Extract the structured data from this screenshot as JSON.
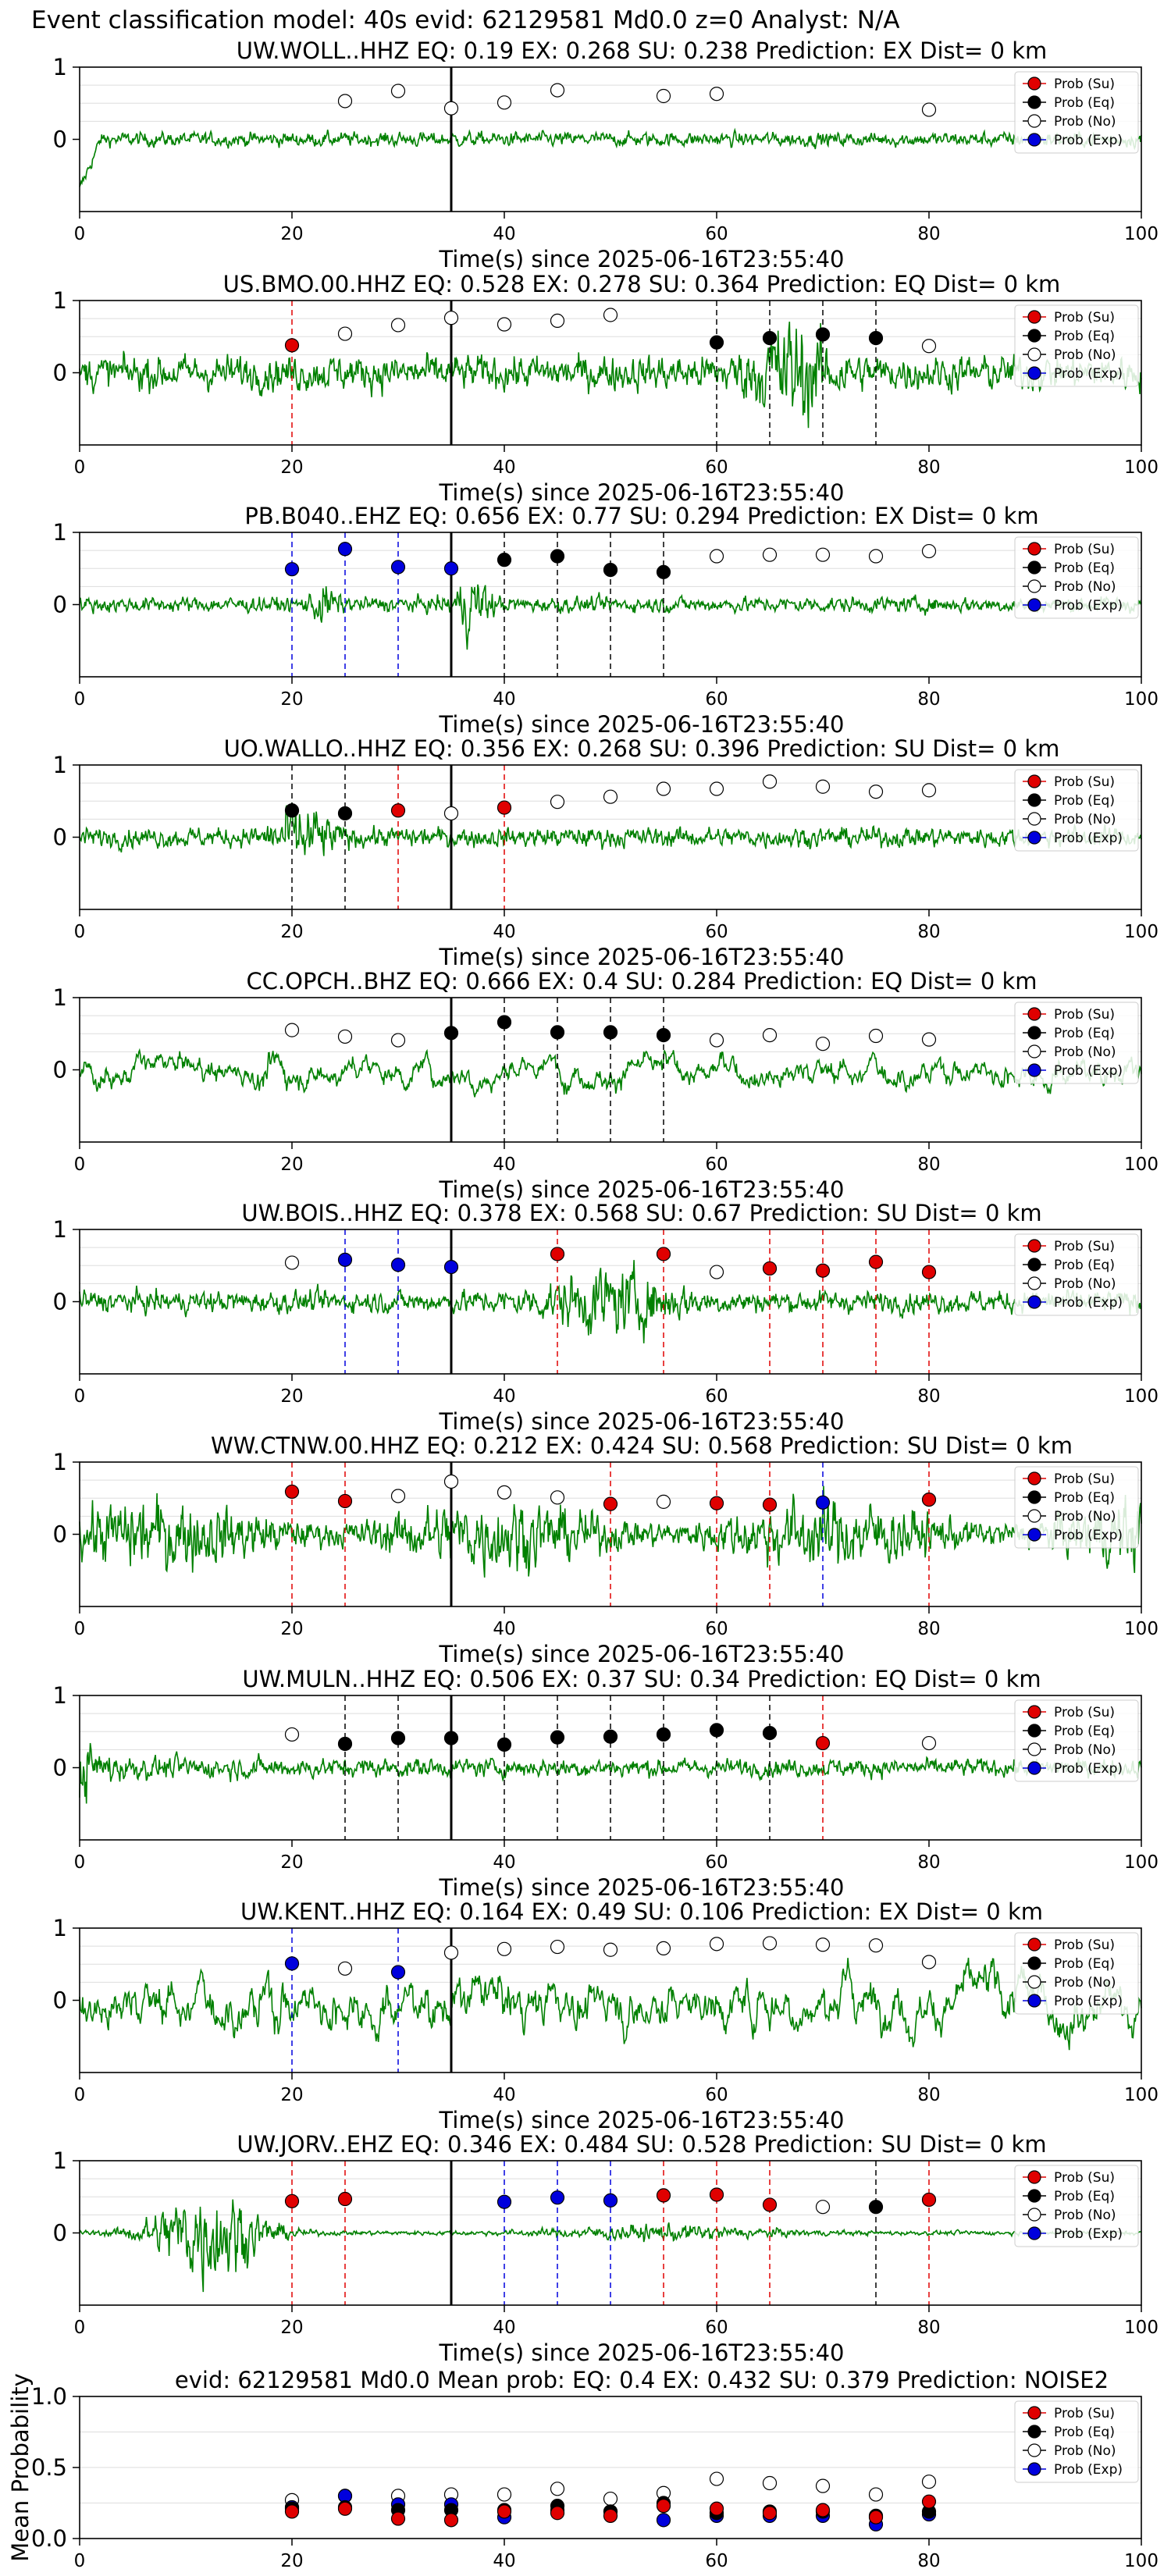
{
  "figure_title": "Event classification model: 40s evid: 62129581 Md0.0 z=0 Analyst: N/A",
  "x_axis_label": "Time(s) since 2025-06-16T23:55:40",
  "legend_labels": [
    "Prob (Su)",
    "Prob (Eq)",
    "Prob (No)",
    "Prob (Exp)"
  ],
  "colors": {
    "su": "#e00000",
    "eq": "#000000",
    "no": "#ffffff",
    "exp": "#0000dd",
    "waveform": "#008000",
    "grid": "#dddddd"
  },
  "chart_data": [
    {
      "type": "line",
      "station": "UW.WOLL..HHZ",
      "title": "UW.WOLL..HHZ   EQ: 0.19  EX: 0.268  SU: 0.238   Prediction: EX    Dist= 0 km",
      "xlim": [
        0,
        100
      ],
      "ylim": [
        -1,
        1
      ],
      "x_ticks": [
        0,
        20,
        40,
        60,
        80,
        100
      ],
      "y_ticks": [
        0,
        1
      ],
      "origin_line_x": 35,
      "waveform": {
        "amplitude": 0.13,
        "style": "quiet"
      },
      "markers": {
        "x": [
          25,
          30,
          35,
          40,
          45,
          55,
          60,
          80
        ],
        "classes": [
          "no",
          "no",
          "no",
          "no",
          "no",
          "no",
          "no",
          "no"
        ],
        "y": [
          0.53,
          0.67,
          0.43,
          0.51,
          0.68,
          0.6,
          0.63,
          0.41
        ]
      },
      "picks": []
    },
    {
      "type": "line",
      "station": "US.BMO.00.HHZ",
      "title": "US.BMO.00.HHZ   EQ: 0.528  EX: 0.278  SU: 0.364   Prediction: EQ    Dist= 0 km",
      "xlim": [
        0,
        100
      ],
      "ylim": [
        -1,
        1
      ],
      "x_ticks": [
        0,
        20,
        40,
        60,
        80,
        100
      ],
      "y_ticks": [
        0,
        1
      ],
      "origin_line_x": 35,
      "waveform": {
        "amplitude": 0.32,
        "style": "burst-late"
      },
      "markers": {
        "x": [
          20,
          25,
          30,
          35,
          40,
          45,
          50,
          60,
          65,
          70,
          75,
          80
        ],
        "classes": [
          "su",
          "no",
          "no",
          "no",
          "no",
          "no",
          "no",
          "eq",
          "eq",
          "eq",
          "eq",
          "no"
        ],
        "y": [
          0.38,
          0.54,
          0.66,
          0.76,
          0.67,
          0.72,
          0.8,
          0.42,
          0.48,
          0.53,
          0.48,
          0.37
        ]
      },
      "picks": [
        {
          "x": 20,
          "cls": "su"
        },
        {
          "x": 60,
          "cls": "eq"
        },
        {
          "x": 65,
          "cls": "eq"
        },
        {
          "x": 70,
          "cls": "eq"
        },
        {
          "x": 75,
          "cls": "eq"
        }
      ]
    },
    {
      "type": "line",
      "station": "PB.B040..EHZ",
      "title": "PB.B040..EHZ   EQ: 0.656  EX: 0.77  SU: 0.294   Prediction: EX    Dist= 0 km",
      "xlim": [
        0,
        100
      ],
      "ylim": [
        -1,
        1
      ],
      "x_ticks": [
        0,
        20,
        40,
        60,
        80,
        100
      ],
      "y_ticks": [
        0,
        1
      ],
      "origin_line_x": 35,
      "waveform": {
        "amplitude": 0.14,
        "style": "spikes-35"
      },
      "markers": {
        "x": [
          20,
          25,
          30,
          35,
          40,
          45,
          50,
          55,
          60,
          65,
          70,
          75,
          80
        ],
        "classes": [
          "exp",
          "exp",
          "exp",
          "exp",
          "eq",
          "eq",
          "eq",
          "eq",
          "no",
          "no",
          "no",
          "no",
          "no"
        ],
        "y": [
          0.49,
          0.77,
          0.52,
          0.5,
          0.62,
          0.67,
          0.48,
          0.45,
          0.67,
          0.69,
          0.69,
          0.67,
          0.74
        ]
      },
      "picks": [
        {
          "x": 20,
          "cls": "exp"
        },
        {
          "x": 25,
          "cls": "exp"
        },
        {
          "x": 30,
          "cls": "exp"
        },
        {
          "x": 40,
          "cls": "eq"
        },
        {
          "x": 45,
          "cls": "eq"
        },
        {
          "x": 50,
          "cls": "eq"
        },
        {
          "x": 55,
          "cls": "eq"
        }
      ]
    },
    {
      "type": "line",
      "station": "UO.WALLO..HHZ",
      "title": "UO.WALLO..HHZ   EQ: 0.356  EX: 0.268  SU: 0.396   Prediction: SU    Dist= 0 km",
      "xlim": [
        0,
        100
      ],
      "ylim": [
        -1,
        1
      ],
      "x_ticks": [
        0,
        20,
        40,
        60,
        80,
        100
      ],
      "y_ticks": [
        0,
        1
      ],
      "origin_line_x": 35,
      "waveform": {
        "amplitude": 0.18,
        "style": "burst-20"
      },
      "markers": {
        "x": [
          20,
          25,
          30,
          35,
          40,
          45,
          50,
          55,
          60,
          65,
          70,
          75,
          80
        ],
        "classes": [
          "eq",
          "eq",
          "su",
          "no",
          "su",
          "no",
          "no",
          "no",
          "no",
          "no",
          "no",
          "no",
          "no"
        ],
        "y": [
          0.37,
          0.33,
          0.37,
          0.33,
          0.41,
          0.49,
          0.56,
          0.67,
          0.67,
          0.77,
          0.7,
          0.63,
          0.65
        ]
      },
      "picks": [
        {
          "x": 20,
          "cls": "eq"
        },
        {
          "x": 25,
          "cls": "eq"
        },
        {
          "x": 30,
          "cls": "su"
        },
        {
          "x": 40,
          "cls": "su"
        }
      ]
    },
    {
      "type": "line",
      "station": "CC.OPCH..BHZ",
      "title": "CC.OPCH..BHZ   EQ: 0.666  EX: 0.4  SU: 0.284   Prediction: EQ    Dist= 0 km",
      "xlim": [
        0,
        100
      ],
      "ylim": [
        -1,
        1
      ],
      "x_ticks": [
        0,
        20,
        40,
        60,
        80,
        100
      ],
      "y_ticks": [
        0,
        1
      ],
      "origin_line_x": 35,
      "waveform": {
        "amplitude": 0.26,
        "style": "long-period"
      },
      "markers": {
        "x": [
          20,
          25,
          30,
          35,
          40,
          45,
          50,
          55,
          60,
          65,
          70,
          75,
          80
        ],
        "classes": [
          "no",
          "no",
          "no",
          "eq",
          "eq",
          "eq",
          "eq",
          "eq",
          "no",
          "no",
          "no",
          "no",
          "no"
        ],
        "y": [
          0.55,
          0.46,
          0.41,
          0.51,
          0.66,
          0.52,
          0.52,
          0.48,
          0.41,
          0.48,
          0.36,
          0.47,
          0.42
        ]
      },
      "picks": [
        {
          "x": 40,
          "cls": "eq"
        },
        {
          "x": 45,
          "cls": "eq"
        },
        {
          "x": 50,
          "cls": "eq"
        },
        {
          "x": 55,
          "cls": "eq"
        }
      ]
    },
    {
      "type": "line",
      "station": "UW.BOIS..HHZ",
      "title": "UW.BOIS..HHZ   EQ: 0.378  EX: 0.568  SU: 0.67   Prediction: SU    Dist= 0 km",
      "xlim": [
        0,
        100
      ],
      "ylim": [
        -1,
        1
      ],
      "x_ticks": [
        0,
        20,
        40,
        60,
        80,
        100
      ],
      "y_ticks": [
        0,
        1
      ],
      "origin_line_x": 35,
      "waveform": {
        "amplitude": 0.2,
        "style": "burst-mid"
      },
      "markers": {
        "x": [
          20,
          25,
          30,
          35,
          45,
          55,
          60,
          65,
          70,
          75,
          80
        ],
        "classes": [
          "no",
          "exp",
          "exp",
          "exp",
          "su",
          "su",
          "no",
          "su",
          "su",
          "su",
          "su"
        ],
        "y": [
          0.54,
          0.58,
          0.51,
          0.48,
          0.66,
          0.66,
          0.41,
          0.46,
          0.43,
          0.55,
          0.41
        ]
      },
      "picks": [
        {
          "x": 25,
          "cls": "exp"
        },
        {
          "x": 30,
          "cls": "exp"
        },
        {
          "x": 45,
          "cls": "su"
        },
        {
          "x": 55,
          "cls": "su"
        },
        {
          "x": 65,
          "cls": "su"
        },
        {
          "x": 70,
          "cls": "su"
        },
        {
          "x": 75,
          "cls": "su"
        },
        {
          "x": 80,
          "cls": "su"
        }
      ]
    },
    {
      "type": "line",
      "station": "WW.CTNW.00.HHZ",
      "title": "WW.CTNW.00.HHZ   EQ: 0.212  EX: 0.424  SU: 0.568   Prediction: SU    Dist= 0 km",
      "xlim": [
        0,
        100
      ],
      "ylim": [
        -1,
        1
      ],
      "x_ticks": [
        0,
        20,
        40,
        60,
        80,
        100
      ],
      "y_ticks": [
        0,
        1
      ],
      "origin_line_x": 35,
      "waveform": {
        "amplitude": 0.45,
        "style": "noisy"
      },
      "markers": {
        "x": [
          20,
          25,
          30,
          35,
          40,
          45,
          50,
          55,
          60,
          65,
          70,
          80
        ],
        "classes": [
          "su",
          "su",
          "no",
          "no",
          "no",
          "no",
          "su",
          "no",
          "su",
          "su",
          "exp",
          "su"
        ],
        "y": [
          0.59,
          0.46,
          0.53,
          0.73,
          0.58,
          0.51,
          0.42,
          0.45,
          0.43,
          0.41,
          0.44,
          0.48
        ]
      },
      "picks": [
        {
          "x": 20,
          "cls": "su"
        },
        {
          "x": 25,
          "cls": "su"
        },
        {
          "x": 50,
          "cls": "su"
        },
        {
          "x": 60,
          "cls": "su"
        },
        {
          "x": 65,
          "cls": "su"
        },
        {
          "x": 70,
          "cls": "exp"
        },
        {
          "x": 80,
          "cls": "su"
        }
      ]
    },
    {
      "type": "line",
      "station": "UW.MULN..HHZ",
      "title": "UW.MULN..HHZ   EQ: 0.506  EX: 0.37  SU: 0.34   Prediction: EQ    Dist= 0 km",
      "xlim": [
        0,
        100
      ],
      "ylim": [
        -1,
        1
      ],
      "x_ticks": [
        0,
        20,
        40,
        60,
        80,
        100
      ],
      "y_ticks": [
        0,
        1
      ],
      "origin_line_x": 35,
      "waveform": {
        "amplitude": 0.16,
        "style": "decay-start"
      },
      "markers": {
        "x": [
          20,
          25,
          30,
          35,
          40,
          45,
          50,
          55,
          60,
          65,
          70,
          80
        ],
        "classes": [
          "no",
          "eq",
          "eq",
          "eq",
          "eq",
          "eq",
          "eq",
          "eq",
          "eq",
          "eq",
          "su",
          "no"
        ],
        "y": [
          0.46,
          0.33,
          0.41,
          0.41,
          0.32,
          0.42,
          0.43,
          0.46,
          0.52,
          0.48,
          0.34,
          0.34
        ]
      },
      "picks": [
        {
          "x": 25,
          "cls": "eq"
        },
        {
          "x": 30,
          "cls": "eq"
        },
        {
          "x": 40,
          "cls": "eq"
        },
        {
          "x": 45,
          "cls": "eq"
        },
        {
          "x": 50,
          "cls": "eq"
        },
        {
          "x": 55,
          "cls": "eq"
        },
        {
          "x": 60,
          "cls": "eq"
        },
        {
          "x": 65,
          "cls": "eq"
        },
        {
          "x": 70,
          "cls": "su"
        }
      ]
    },
    {
      "type": "line",
      "station": "UW.KENT..HHZ",
      "title": "UW.KENT..HHZ   EQ: 0.164  EX: 0.49  SU: 0.106   Prediction: EX    Dist= 0 km",
      "xlim": [
        0,
        100
      ],
      "ylim": [
        -1,
        1
      ],
      "x_ticks": [
        0,
        20,
        40,
        60,
        80,
        100
      ],
      "y_ticks": [
        0,
        1
      ],
      "origin_line_x": 35,
      "waveform": {
        "amplitude": 0.45,
        "style": "long-period"
      },
      "markers": {
        "x": [
          20,
          25,
          30,
          35,
          40,
          45,
          50,
          55,
          60,
          65,
          70,
          75,
          80
        ],
        "classes": [
          "exp",
          "no",
          "exp",
          "no",
          "no",
          "no",
          "no",
          "no",
          "no",
          "no",
          "no",
          "no",
          "no"
        ],
        "y": [
          0.51,
          0.44,
          0.39,
          0.66,
          0.71,
          0.74,
          0.7,
          0.72,
          0.78,
          0.79,
          0.77,
          0.76,
          0.53
        ]
      },
      "picks": [
        {
          "x": 20,
          "cls": "exp"
        },
        {
          "x": 30,
          "cls": "exp"
        }
      ]
    },
    {
      "type": "line",
      "station": "UW.JORV..EHZ",
      "title": "UW.JORV..EHZ   EQ: 0.346  EX: 0.484  SU: 0.528   Prediction: SU    Dist= 0 km",
      "xlim": [
        0,
        100
      ],
      "ylim": [
        -1,
        1
      ],
      "x_ticks": [
        0,
        20,
        40,
        60,
        80,
        100
      ],
      "y_ticks": [
        0,
        1
      ],
      "origin_line_x": 35,
      "waveform": {
        "amplitude": 0.04,
        "style": "early-burst"
      },
      "markers": {
        "x": [
          20,
          25,
          40,
          45,
          50,
          55,
          60,
          65,
          70,
          75,
          80
        ],
        "classes": [
          "su",
          "su",
          "exp",
          "exp",
          "exp",
          "su",
          "su",
          "su",
          "no",
          "eq",
          "su"
        ],
        "y": [
          0.44,
          0.47,
          0.43,
          0.49,
          0.45,
          0.52,
          0.53,
          0.39,
          0.36,
          0.36,
          0.46
        ]
      },
      "picks": [
        {
          "x": 20,
          "cls": "su"
        },
        {
          "x": 25,
          "cls": "su"
        },
        {
          "x": 40,
          "cls": "exp"
        },
        {
          "x": 45,
          "cls": "exp"
        },
        {
          "x": 50,
          "cls": "exp"
        },
        {
          "x": 55,
          "cls": "su"
        },
        {
          "x": 60,
          "cls": "su"
        },
        {
          "x": 65,
          "cls": "su"
        },
        {
          "x": 75,
          "cls": "eq"
        },
        {
          "x": 80,
          "cls": "su"
        }
      ]
    },
    {
      "type": "scatter",
      "title": "evid: 62129581  Md0.0   Mean prob:   EQ: 0.4  EX: 0.432  SU: 0.379   Prediction: NOISE2",
      "ylabel": "Mean Probability",
      "xlim": [
        0,
        100
      ],
      "ylim": [
        0,
        1
      ],
      "x_ticks": [
        0,
        20,
        40,
        60,
        80,
        100
      ],
      "y_ticks": [
        0.0,
        0.5,
        1.0
      ],
      "y_tick_labels": [
        "0.0",
        "0.5",
        "1.0"
      ],
      "x": [
        20,
        25,
        30,
        35,
        40,
        45,
        50,
        55,
        60,
        65,
        70,
        75,
        80
      ],
      "series": [
        {
          "cls": "no",
          "values": [
            0.27,
            0.3,
            0.3,
            0.31,
            0.31,
            0.35,
            0.28,
            0.32,
            0.42,
            0.39,
            0.37,
            0.31,
            0.4
          ]
        },
        {
          "cls": "exp",
          "values": [
            0.22,
            0.3,
            0.24,
            0.24,
            0.15,
            0.2,
            0.19,
            0.13,
            0.16,
            0.16,
            0.16,
            0.1,
            0.17
          ]
        },
        {
          "cls": "eq",
          "values": [
            0.21,
            0.22,
            0.2,
            0.2,
            0.2,
            0.23,
            0.19,
            0.25,
            0.18,
            0.19,
            0.19,
            0.16,
            0.19
          ]
        },
        {
          "cls": "su",
          "values": [
            0.19,
            0.21,
            0.14,
            0.13,
            0.19,
            0.18,
            0.16,
            0.23,
            0.21,
            0.18,
            0.2,
            0.15,
            0.26
          ]
        }
      ]
    }
  ]
}
